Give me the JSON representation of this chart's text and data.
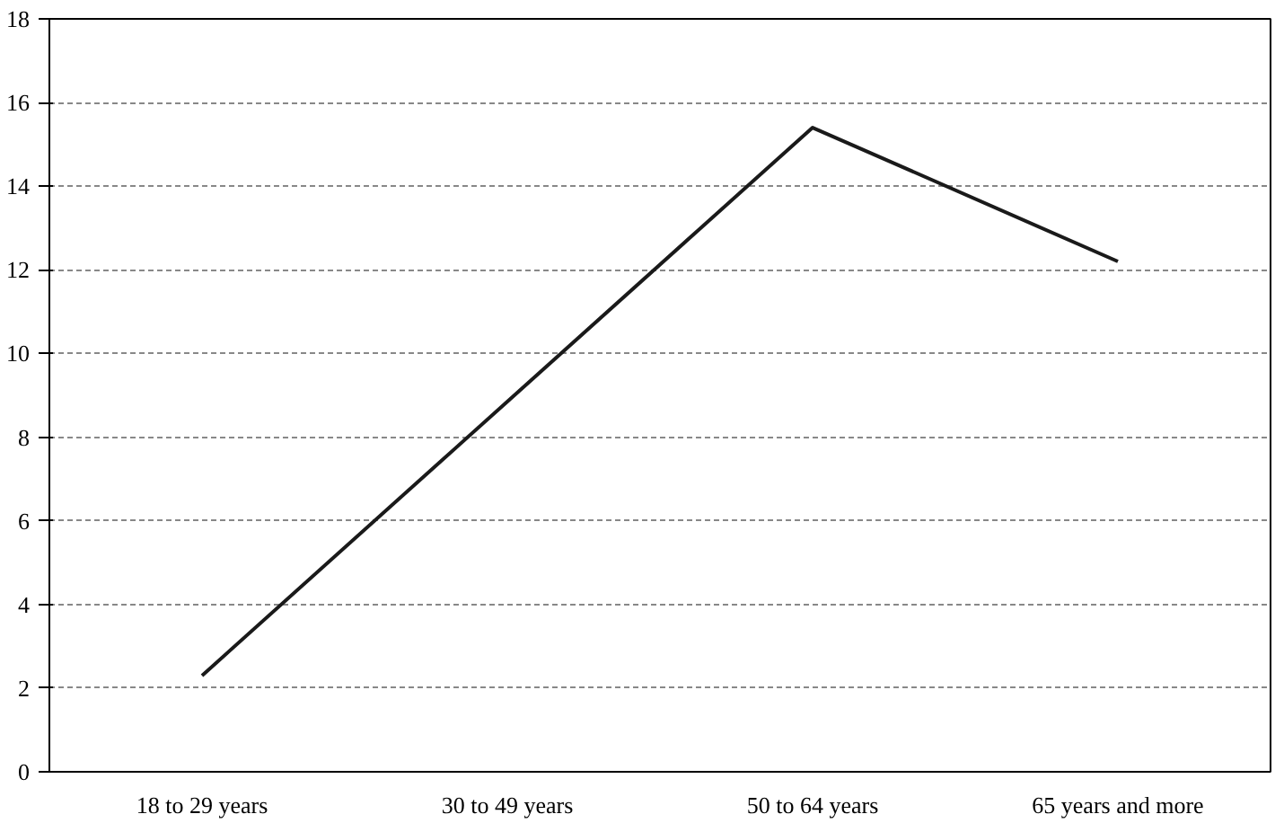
{
  "chart_data": {
    "type": "line",
    "categories": [
      "18 to 29 years",
      "30 to 49 years",
      "50 to 64 years",
      "65 years and more"
    ],
    "series": [
      {
        "color": "#1a1a1a",
        "values": [
          2.3,
          8.85,
          15.4,
          12.2
        ]
      }
    ],
    "ylim": [
      0,
      18
    ],
    "yticks": [
      0,
      2,
      4,
      6,
      8,
      10,
      12,
      14,
      16,
      18
    ],
    "grid": "y",
    "marker": "none",
    "line_style": "solid"
  }
}
